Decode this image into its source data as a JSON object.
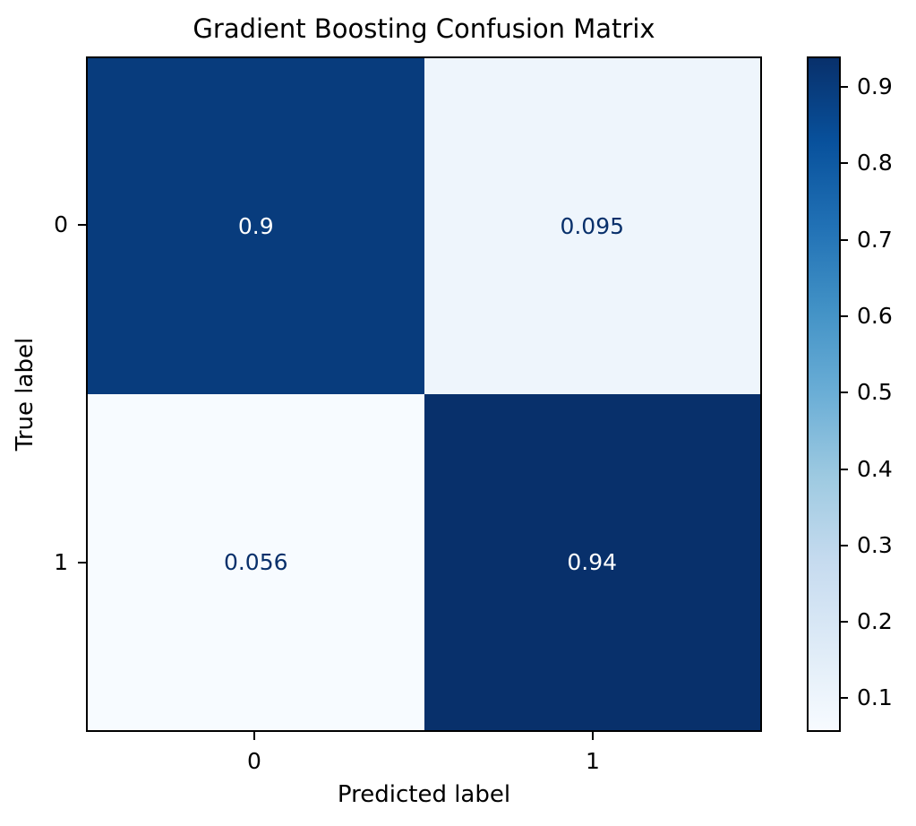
{
  "figure": {
    "background": "#ffffff",
    "text_color": "#000000"
  },
  "chart_data": {
    "type": "heatmap",
    "title": "Gradient Boosting Confusion Matrix",
    "xlabel": "Predicted label",
    "ylabel": "True label",
    "x_tick_labels": [
      "0",
      "1"
    ],
    "y_tick_labels": [
      "0",
      "1"
    ],
    "matrix": [
      [
        0.9,
        0.095
      ],
      [
        0.056,
        0.94
      ]
    ],
    "cell_labels": [
      [
        "0.9",
        "0.095"
      ],
      [
        "0.056",
        "0.94"
      ]
    ],
    "vmin": 0.056,
    "vmax": 0.94,
    "colormap": "Blues",
    "colormap_stops": [
      "#f7fbff",
      "#deebf7",
      "#c6dbef",
      "#9ecae1",
      "#6baed6",
      "#4292c6",
      "#2171b5",
      "#08519c",
      "#08306b"
    ],
    "colorbar_ticks": [
      0.9,
      0.8,
      0.7,
      0.6,
      0.5,
      0.4,
      0.3,
      0.2,
      0.1
    ],
    "colorbar_tick_labels": [
      "0.9",
      "0.8",
      "0.7",
      "0.6",
      "0.5",
      "0.4",
      "0.3",
      "0.2",
      "0.1"
    ],
    "legend_position": "right-colorbar",
    "grid": false,
    "cell_text_colors": {
      "light": "#ffffff",
      "dark": "#08306b"
    }
  }
}
